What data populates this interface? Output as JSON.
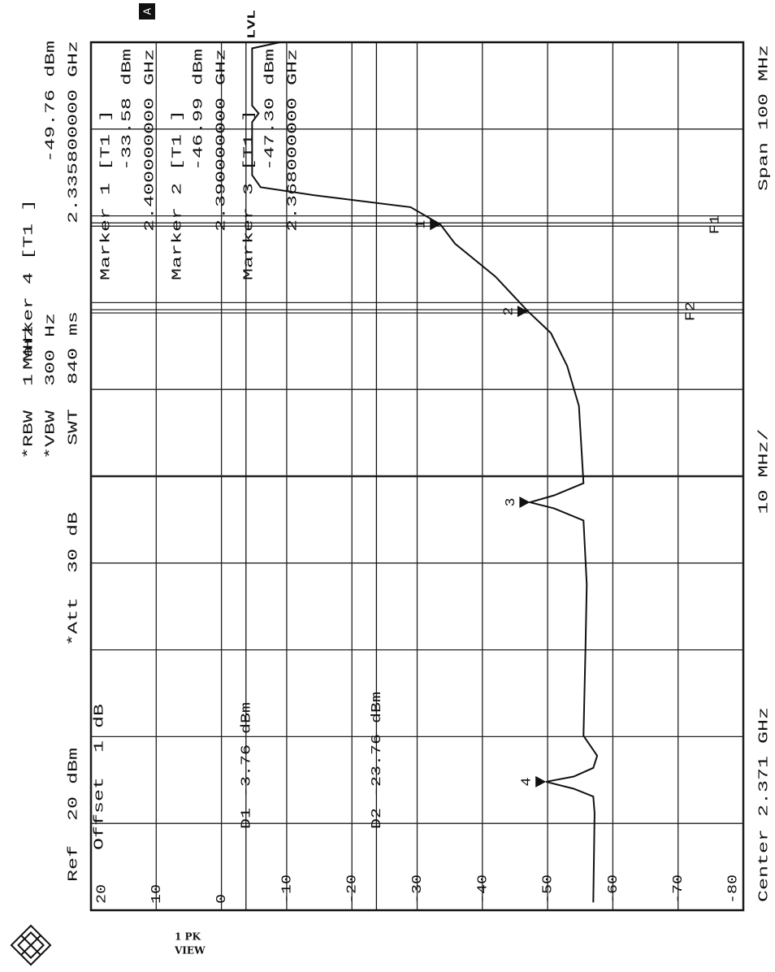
{
  "chart_data": {
    "type": "line",
    "color": "#111111",
    "header": {
      "ref": "Ref  20 dBm",
      "offset": "Offset  1 dB",
      "att": "*Att  30 dB",
      "rbw": "*RBW  1 MHz",
      "vbw": "*VBW  300 Hz",
      "swt": "SWT  840 ms",
      "lvl": "LVL",
      "a": "A",
      "trace": "1 PK",
      "view": "VIEW"
    },
    "footer": {
      "center": "Center 2.371 GHz",
      "per_div": "10 MHz/",
      "span": "Span 100 MHz"
    },
    "xlim": [
      2.321,
      2.421
    ],
    "ylim": [
      -80,
      20
    ],
    "yticks": [
      20,
      10,
      0,
      -10,
      -20,
      -30,
      -40,
      -50,
      -60,
      -70,
      -80
    ],
    "grid": true,
    "x": [
      2.3219,
      2.3322,
      2.3341,
      2.335,
      2.3358,
      2.3364,
      2.3374,
      2.3388,
      2.3411,
      2.351,
      2.3585,
      2.3659,
      2.3673,
      2.368,
      2.3688,
      2.3702,
      2.3791,
      2.3837,
      2.3875,
      2.39,
      2.394,
      2.3978,
      2.4,
      2.402,
      2.4034,
      2.4043,
      2.4057,
      2.4118,
      2.4128,
      2.4137,
      2.4203,
      2.421
    ],
    "values": [
      -57.0,
      -57.2,
      -57.0,
      -54.0,
      -49.76,
      -54.0,
      -57.0,
      -57.6,
      -55.5,
      -55.8,
      -56.0,
      -55.5,
      -51.0,
      -47.3,
      -51.0,
      -55.5,
      -54.8,
      -53.0,
      -50.5,
      -46.99,
      -42.0,
      -35.8,
      -33.58,
      -29.0,
      -14.0,
      -6.0,
      -4.7,
      -4.7,
      -5.7,
      -4.7,
      -4.7,
      -9.0
    ],
    "markers": [
      {
        "label": "1",
        "title": "Marker 1 [T1 ]",
        "x": 2.4,
        "y": -33.58,
        "y_text": "-33.58 dBm",
        "x_text": "2.400000000 GHz"
      },
      {
        "label": "2",
        "title": "Marker 2 [T1 ]",
        "x": 2.39,
        "y": -46.99,
        "y_text": "-46.99 dBm",
        "x_text": "2.390000000 GHz"
      },
      {
        "label": "3",
        "title": "Marker 3 [T1 ]",
        "x": 2.368,
        "y": -47.3,
        "y_text": "-47.30 dBm",
        "x_text": "2.368000000 GHz"
      },
      {
        "label": "4",
        "title": "Marker 4 [T1 ]",
        "x": 2.3358,
        "y": -49.76,
        "y_text": "-49.76 dBm",
        "x_text": "2.335800000 GHz"
      }
    ],
    "display_lines": [
      {
        "label": "D1 -3.76 dBm",
        "value": -3.76
      },
      {
        "label": "D2 -23.76 dBm",
        "value": -23.76
      }
    ],
    "frequency_lines": [
      {
        "label": "F1",
        "value": 2.4
      },
      {
        "label": "F2",
        "value": 2.39
      }
    ]
  }
}
